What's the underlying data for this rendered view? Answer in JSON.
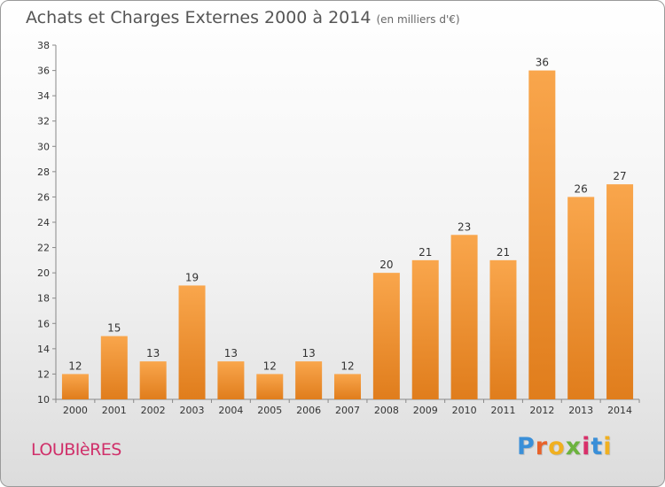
{
  "header": {
    "title": "Achats et Charges Externes 2000 à 2014",
    "unit": "(en milliers d'€)"
  },
  "footer": {
    "place": "LOUBIèRES",
    "logo": "Proxiti"
  },
  "colors": {
    "bar_light": "#f9a64c",
    "bar_dark": "#e07d1c",
    "logo": [
      "#3a8fd8",
      "#e8622a",
      "#f0b020",
      "#6cb33e",
      "#d8306a",
      "#3a8fd8",
      "#f0b020"
    ]
  },
  "chart_data": {
    "type": "bar",
    "title": "Achats et Charges Externes 2000 à 2014",
    "subtitle": "(en milliers d'€)",
    "xlabel": "",
    "ylabel": "",
    "categories": [
      "2000",
      "2001",
      "2002",
      "2003",
      "2004",
      "2005",
      "2006",
      "2007",
      "2008",
      "2009",
      "2010",
      "2011",
      "2012",
      "2013",
      "2014"
    ],
    "values": [
      12,
      15,
      13,
      19,
      13,
      12,
      13,
      12,
      20,
      21,
      23,
      21,
      36,
      26,
      27
    ],
    "ylim": [
      10,
      38
    ],
    "yticks": [
      10,
      12,
      14,
      16,
      18,
      20,
      22,
      24,
      26,
      28,
      30,
      32,
      34,
      36,
      38
    ],
    "grid": false,
    "data_labels": true
  }
}
